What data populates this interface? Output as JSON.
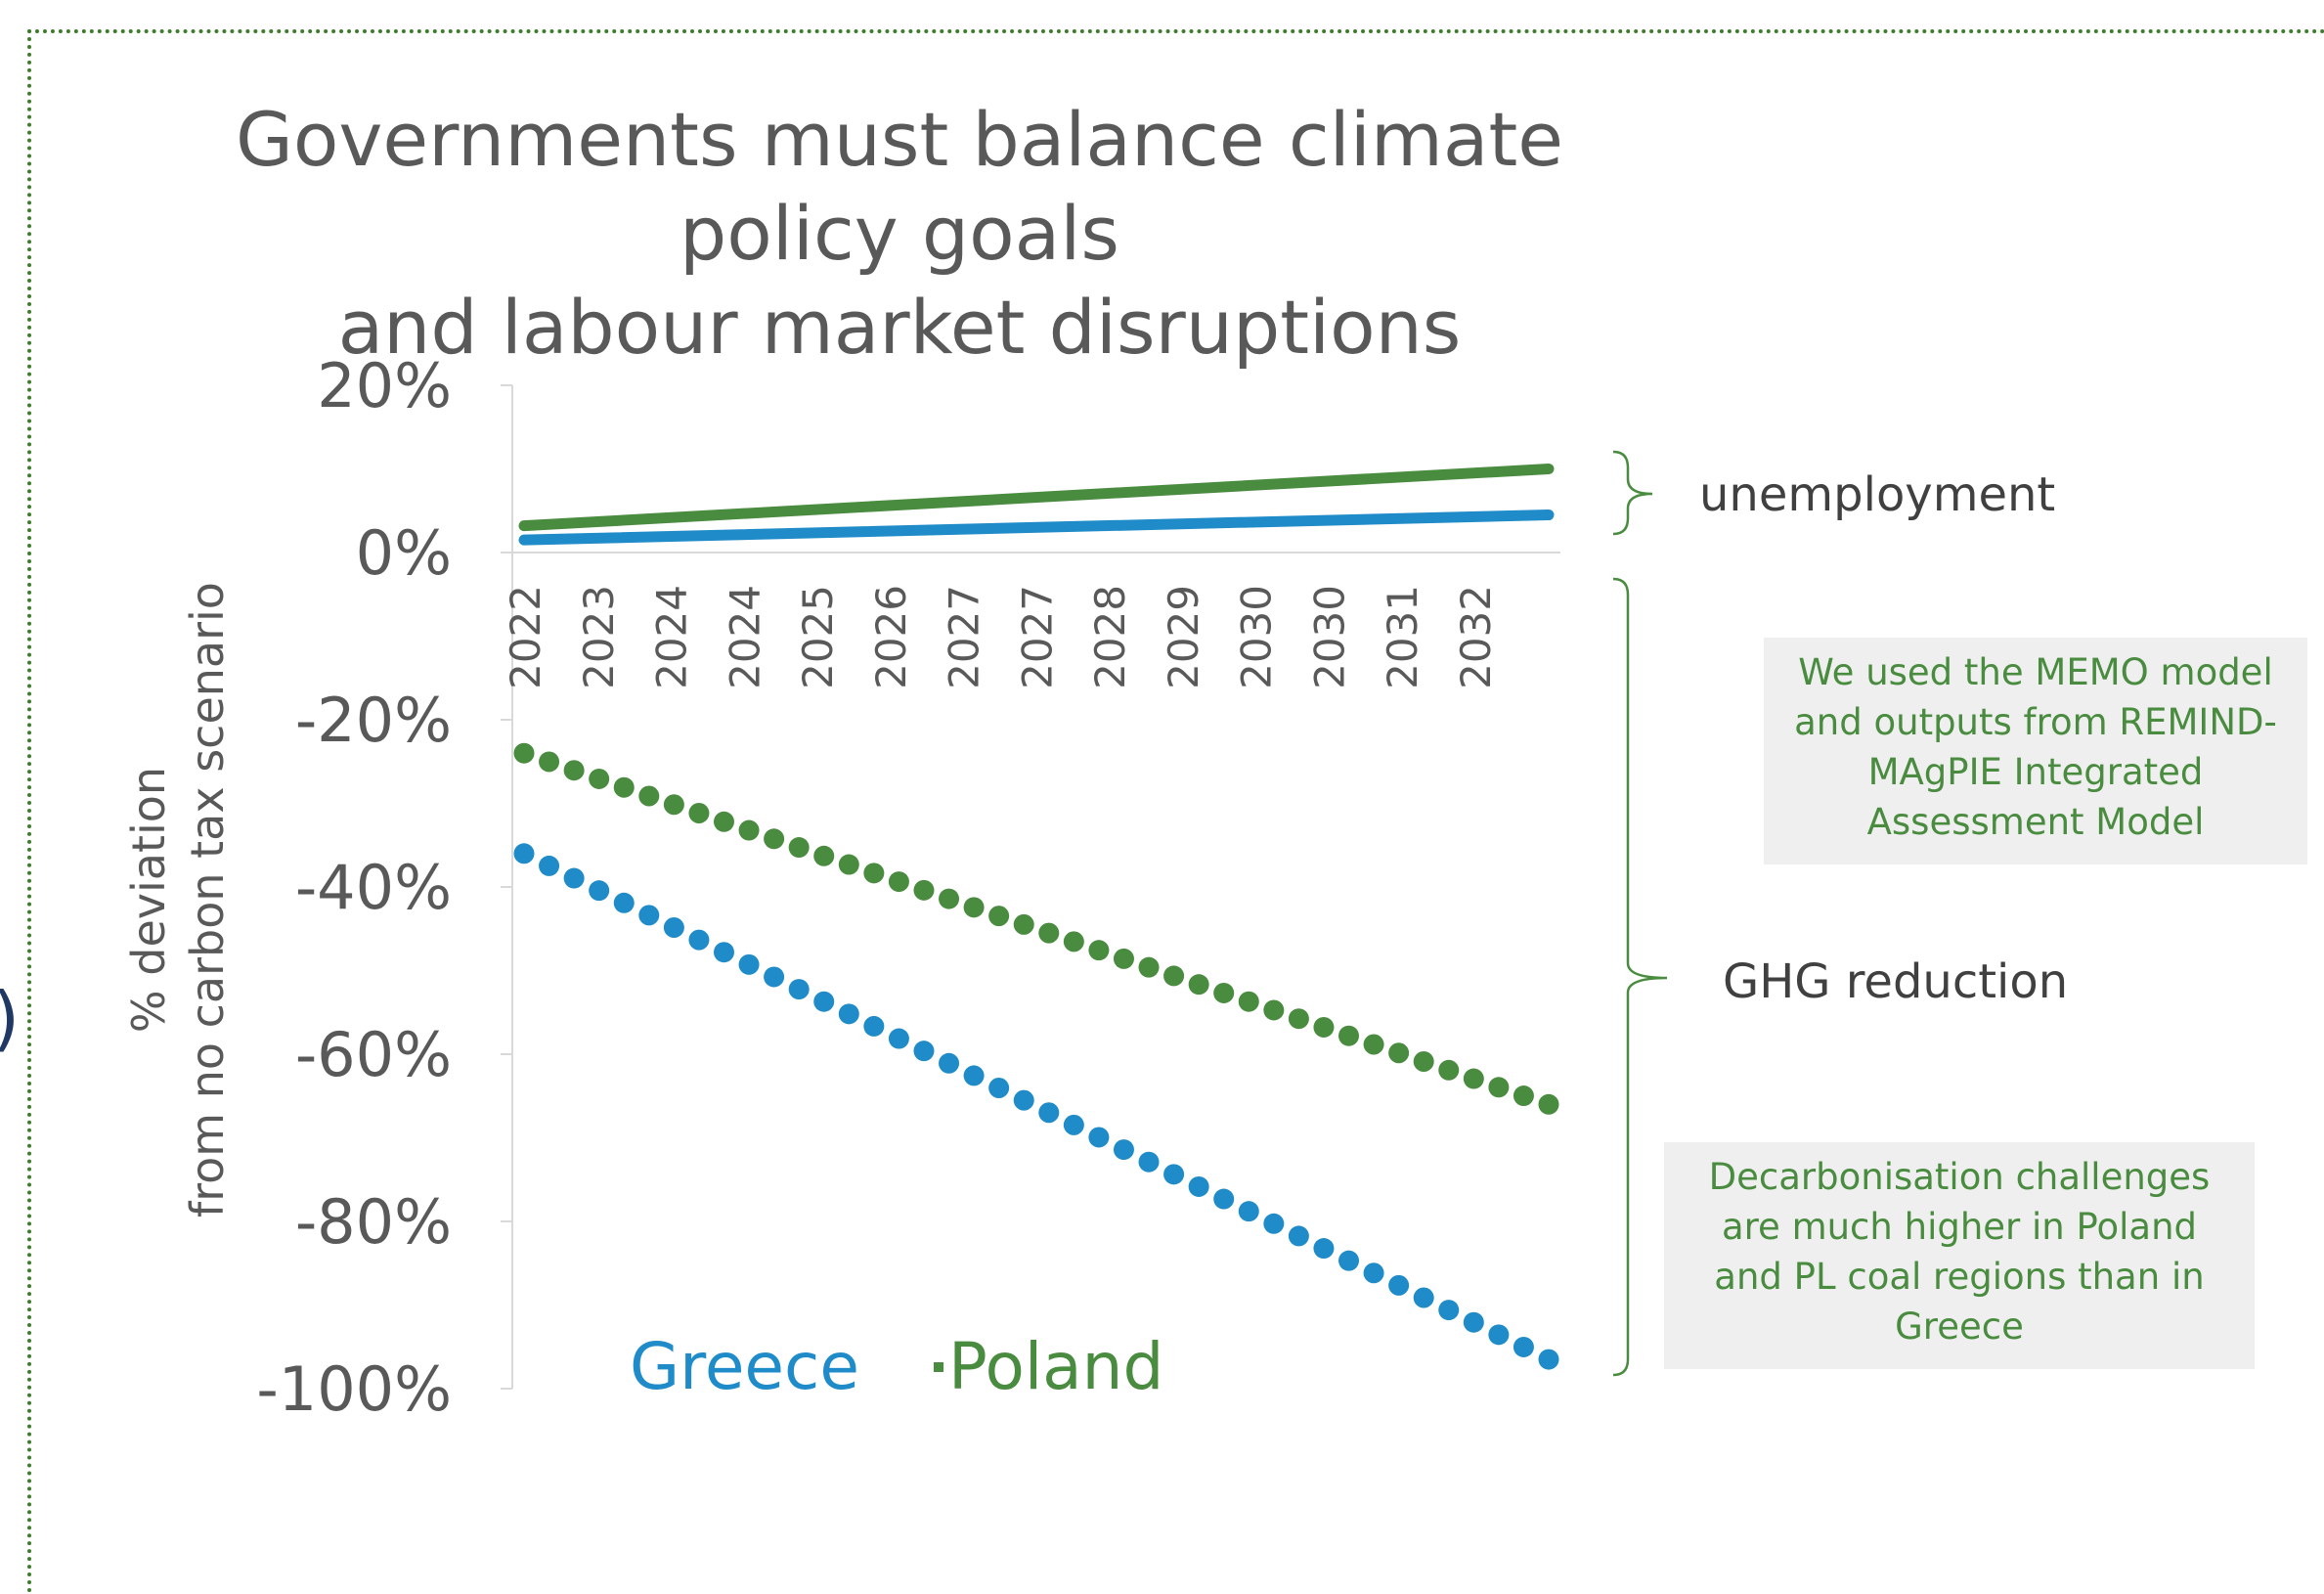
{
  "title_lines": [
    "Governments must balance climate policy goals",
    "and labour market disruptions"
  ],
  "stray_glyph": ")",
  "notes": {
    "memo": [
      "We used the MEMO model",
      "and outputs from REMIND-",
      "MAgPIE Integrated",
      "Assessment Model"
    ],
    "decarb": [
      "Decarbonisation challenges",
      "are much higher in Poland",
      "and PL coal regions than in",
      "Greece"
    ]
  },
  "annotations": {
    "unemployment": "unemployment",
    "ghg": "GHG reduction"
  },
  "colors": {
    "greece": "#1f8bc8",
    "poland": "#4a8c3f",
    "text": "#595959",
    "axis": "#d9d9d9"
  },
  "chart_data": {
    "type": "line",
    "title": "Governments must balance climate policy goals and labour market disruptions",
    "ylabel_lines": [
      "% deviation",
      "from no carbon tax scenario"
    ],
    "xlabel": "",
    "yticks": [
      "20%",
      "0%",
      "-20%",
      "-40%",
      "-60%",
      "-80%",
      "-100%"
    ],
    "ylim": [
      -100,
      20
    ],
    "x_tick_labels": [
      "2022",
      "2023",
      "2024",
      "2024",
      "2025",
      "2026",
      "2027",
      "2027",
      "2028",
      "2029",
      "2030",
      "2030",
      "2031",
      "2032"
    ],
    "legend": [
      "Greece",
      "Poland"
    ],
    "legend_placement": "bottom-left inside plot",
    "grid": false,
    "series": [
      {
        "name": "Greece",
        "metric": "unemployment",
        "style": "solid",
        "start": 1.5,
        "end": 4.5
      },
      {
        "name": "Poland",
        "metric": "unemployment",
        "style": "solid",
        "start": 3.2,
        "end": 10.0
      },
      {
        "name": "Greece",
        "metric": "GHG reduction",
        "style": "dotted",
        "start": -36,
        "end": -96.5
      },
      {
        "name": "Poland",
        "metric": "GHG reduction",
        "style": "dotted",
        "start": -24,
        "end": -66
      }
    ]
  }
}
